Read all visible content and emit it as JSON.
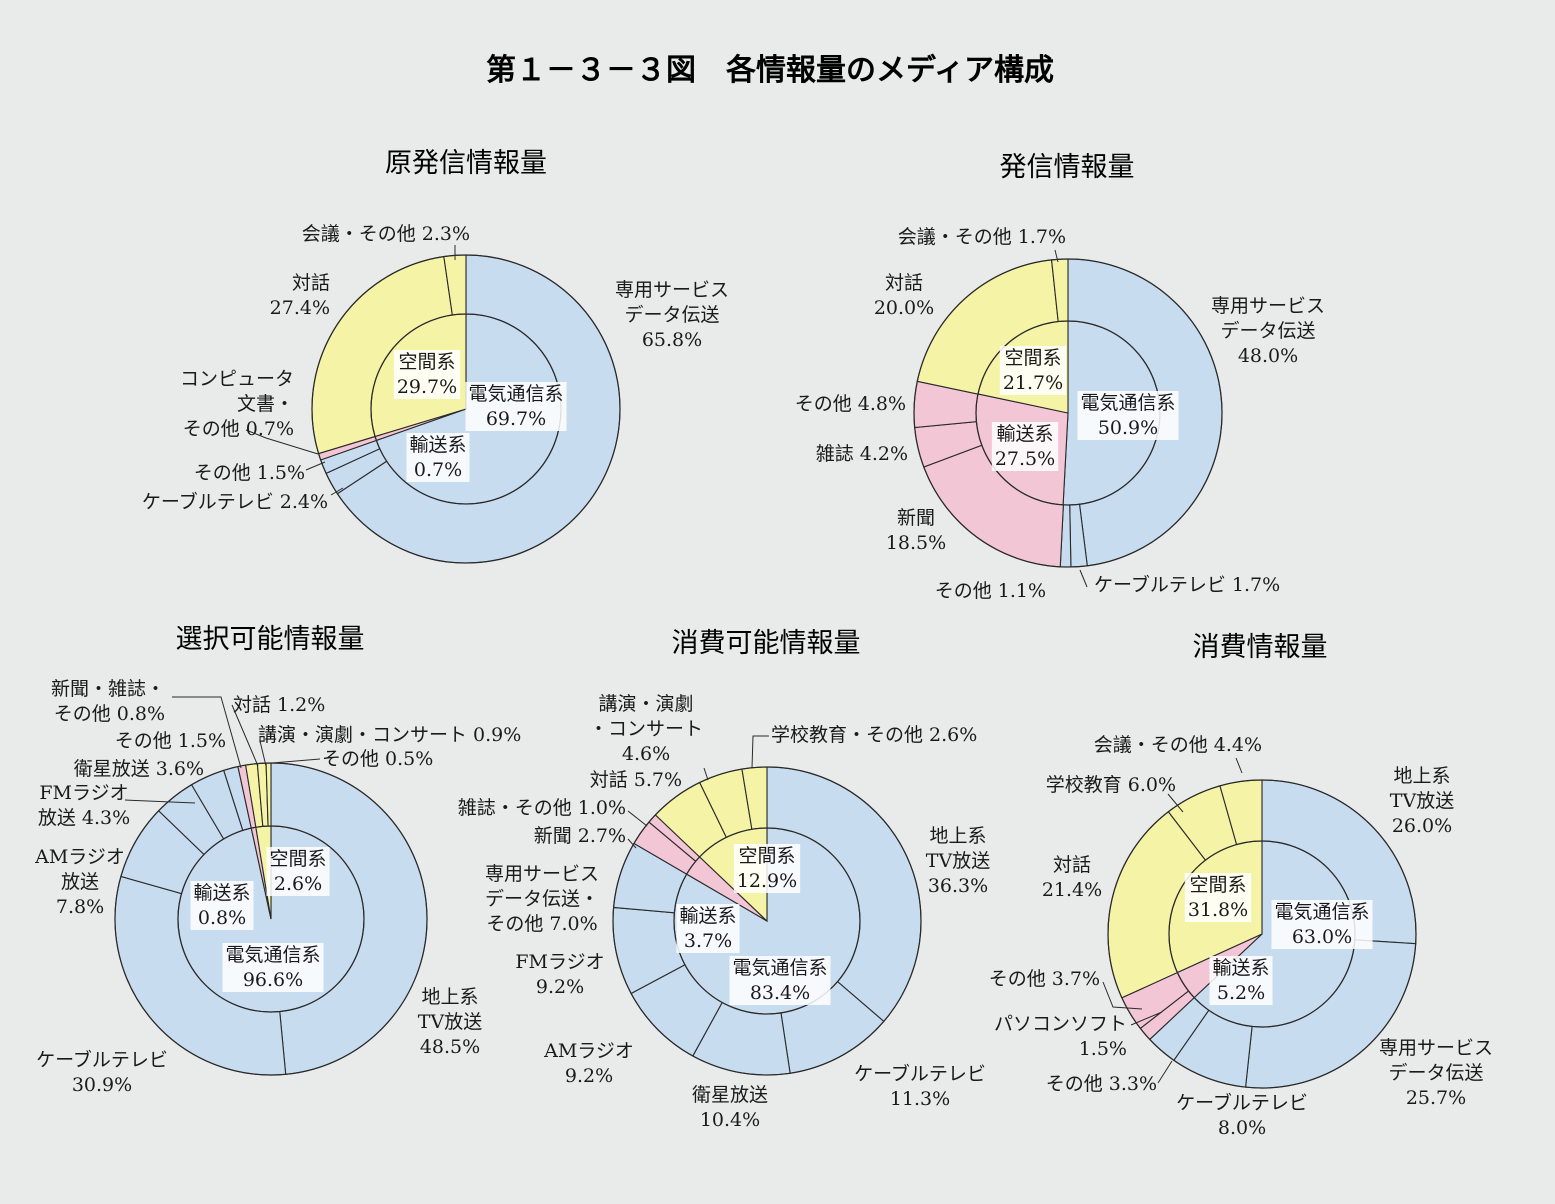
{
  "figure_title": "第１－３－３図　各情報量のメディア構成",
  "colors": {
    "telecom": "#c8dcef",
    "transport": "#f3c6d6",
    "spatial": "#f5f4a6",
    "edge": "#2a2a2a",
    "background": "#e9ebea"
  },
  "chart_data": [
    {
      "type": "pie",
      "title": "原発信情報量",
      "inner": [
        {
          "name": "電気通信系",
          "value": 69.7,
          "group": "telecom"
        },
        {
          "name": "輸送系",
          "value": 0.7,
          "group": "transport"
        },
        {
          "name": "空間系",
          "value": 29.7,
          "group": "spatial"
        }
      ],
      "outer": [
        {
          "name": "専用サービスデータ伝送",
          "value": 65.8,
          "group": "telecom"
        },
        {
          "name": "ケーブルテレビ",
          "value": 2.4,
          "group": "telecom"
        },
        {
          "name": "その他",
          "value": 1.5,
          "group": "telecom"
        },
        {
          "name": "コンピュータ文書・その他",
          "value": 0.7,
          "group": "transport"
        },
        {
          "name": "対話",
          "value": 27.4,
          "group": "spatial"
        },
        {
          "name": "会議・その他",
          "value": 2.3,
          "group": "spatial"
        }
      ]
    },
    {
      "type": "pie",
      "title": "発信情報量",
      "inner": [
        {
          "name": "電気通信系",
          "value": 50.9,
          "group": "telecom"
        },
        {
          "name": "輸送系",
          "value": 27.5,
          "group": "transport"
        },
        {
          "name": "空間系",
          "value": 21.7,
          "group": "spatial"
        }
      ],
      "outer": [
        {
          "name": "専用サービスデータ伝送",
          "value": 48.0,
          "group": "telecom"
        },
        {
          "name": "ケーブルテレビ",
          "value": 1.7,
          "group": "telecom"
        },
        {
          "name": "その他",
          "value": 1.1,
          "group": "telecom"
        },
        {
          "name": "新聞",
          "value": 18.5,
          "group": "transport"
        },
        {
          "name": "雑誌",
          "value": 4.2,
          "group": "transport"
        },
        {
          "name": "その他",
          "value": 4.8,
          "group": "transport"
        },
        {
          "name": "対話",
          "value": 20.0,
          "group": "spatial"
        },
        {
          "name": "会議・その他",
          "value": 1.7,
          "group": "spatial"
        }
      ]
    },
    {
      "type": "pie",
      "title": "選択可能情報量",
      "inner": [
        {
          "name": "電気通信系",
          "value": 96.6,
          "group": "telecom"
        },
        {
          "name": "輸送系",
          "value": 0.8,
          "group": "transport"
        },
        {
          "name": "空間系",
          "value": 2.6,
          "group": "spatial"
        }
      ],
      "outer": [
        {
          "name": "地上系TV放送",
          "value": 48.5,
          "group": "telecom"
        },
        {
          "name": "ケーブルテレビ",
          "value": 30.9,
          "group": "telecom"
        },
        {
          "name": "AMラジオ放送",
          "value": 7.8,
          "group": "telecom"
        },
        {
          "name": "FMラジオ放送",
          "value": 4.3,
          "group": "telecom"
        },
        {
          "name": "衛星放送",
          "value": 3.6,
          "group": "telecom"
        },
        {
          "name": "その他",
          "value": 1.5,
          "group": "telecom"
        },
        {
          "name": "新聞・雑誌・その他",
          "value": 0.8,
          "group": "transport"
        },
        {
          "name": "対話",
          "value": 1.2,
          "group": "spatial"
        },
        {
          "name": "講演・演劇・コンサート",
          "value": 0.9,
          "group": "spatial"
        },
        {
          "name": "その他",
          "value": 0.5,
          "group": "spatial"
        }
      ]
    },
    {
      "type": "pie",
      "title": "消費可能情報量",
      "inner": [
        {
          "name": "電気通信系",
          "value": 83.4,
          "group": "telecom"
        },
        {
          "name": "輸送系",
          "value": 3.7,
          "group": "transport"
        },
        {
          "name": "空間系",
          "value": 12.9,
          "group": "spatial"
        }
      ],
      "outer": [
        {
          "name": "地上系TV放送",
          "value": 36.3,
          "group": "telecom"
        },
        {
          "name": "ケーブルテレビ",
          "value": 11.3,
          "group": "telecom"
        },
        {
          "name": "衛星放送",
          "value": 10.4,
          "group": "telecom"
        },
        {
          "name": "AMラジオ",
          "value": 9.2,
          "group": "telecom"
        },
        {
          "name": "FMラジオ",
          "value": 9.2,
          "group": "telecom"
        },
        {
          "name": "専用サービスデータ伝送・その他",
          "value": 7.0,
          "group": "telecom"
        },
        {
          "name": "新聞",
          "value": 2.7,
          "group": "transport"
        },
        {
          "name": "雑誌・その他",
          "value": 1.0,
          "group": "transport"
        },
        {
          "name": "対話",
          "value": 5.7,
          "group": "spatial"
        },
        {
          "name": "講演・演劇・コンサート",
          "value": 4.6,
          "group": "spatial"
        },
        {
          "name": "学校教育・その他",
          "value": 2.6,
          "group": "spatial"
        }
      ]
    },
    {
      "type": "pie",
      "title": "消費情報量",
      "inner": [
        {
          "name": "電気通信系",
          "value": 63.0,
          "group": "telecom"
        },
        {
          "name": "輸送系",
          "value": 5.2,
          "group": "transport"
        },
        {
          "name": "空間系",
          "value": 31.8,
          "group": "spatial"
        }
      ],
      "outer": [
        {
          "name": "地上系TV放送",
          "value": 26.0,
          "group": "telecom"
        },
        {
          "name": "専用サービスデータ伝送",
          "value": 25.7,
          "group": "telecom"
        },
        {
          "name": "ケーブルテレビ",
          "value": 8.0,
          "group": "telecom"
        },
        {
          "name": "その他",
          "value": 3.3,
          "group": "telecom"
        },
        {
          "name": "パソコンソフト",
          "value": 1.5,
          "group": "transport"
        },
        {
          "name": "その他",
          "value": 3.7,
          "group": "transport"
        },
        {
          "name": "対話",
          "value": 21.4,
          "group": "spatial"
        },
        {
          "name": "学校教育",
          "value": 6.0,
          "group": "spatial"
        },
        {
          "name": "会議・その他",
          "value": 4.4,
          "group": "spatial"
        }
      ]
    }
  ],
  "labels": [
    [
      [
        "専用サービス",
        "データ伝送",
        "65.8%"
      ],
      [
        "ケーブルテレビ 2.4%"
      ],
      [
        "その他 1.5%"
      ],
      [
        "コンピュータ",
        "文書・",
        "その他 0.7%"
      ],
      [
        "対話",
        "27.4%"
      ],
      [
        "会議・その他 2.3%"
      ]
    ],
    [
      [
        "専用サービス",
        "データ伝送",
        "48.0%"
      ],
      [
        "ケーブルテレビ 1.7%"
      ],
      [
        "その他 1.1%"
      ],
      [
        "新聞",
        "18.5%"
      ],
      [
        "雑誌 4.2%"
      ],
      [
        "その他 4.8%"
      ],
      [
        "対話",
        "20.0%"
      ],
      [
        "会議・その他 1.7%"
      ]
    ],
    [
      [
        "地上系",
        "TV放送",
        "48.5%"
      ],
      [
        "ケーブルテレビ",
        "30.9%"
      ],
      [
        "AMラジオ",
        "放送",
        "7.8%"
      ],
      [
        "FMラジオ",
        "放送 4.3%"
      ],
      [
        "衛星放送 3.6%"
      ],
      [
        "その他 1.5%"
      ],
      [
        "新聞・雑誌・",
        "その他 0.8%"
      ],
      [
        "対話 1.2%"
      ],
      [
        "講演・演劇・コンサート 0.9%"
      ],
      [
        "その他 0.5%"
      ]
    ],
    [
      [
        "地上系",
        "TV放送",
        "36.3%"
      ],
      [
        "ケーブルテレビ",
        "11.3%"
      ],
      [
        "衛星放送",
        "10.4%"
      ],
      [
        "AMラジオ",
        "9.2%"
      ],
      [
        "FMラジオ",
        "9.2%"
      ],
      [
        "専用サービス",
        "データ伝送・",
        "その他 7.0%"
      ],
      [
        "新聞 2.7%"
      ],
      [
        "雑誌・その他 1.0%"
      ],
      [
        "対話 5.7%"
      ],
      [
        "講演・演劇",
        "・コンサート",
        "4.6%"
      ],
      [
        "学校教育・その他 2.6%"
      ]
    ],
    [
      [
        "地上系",
        "TV放送",
        "26.0%"
      ],
      [
        "専用サービス",
        "データ伝送",
        "25.7%"
      ],
      [
        "ケーブルテレビ",
        "8.0%"
      ],
      [
        "その他 3.3%"
      ],
      [
        "パソコンソフト",
        "1.5%"
      ],
      [
        "その他 3.7%"
      ],
      [
        "対話",
        "21.4%"
      ],
      [
        "学校教育 6.0%"
      ],
      [
        "会議・その他 4.4%"
      ]
    ]
  ],
  "inner_labels": [
    [
      [
        "電気通信系",
        "69.7%"
      ],
      [
        "輸送系",
        "0.7%"
      ],
      [
        "空間系",
        "29.7%"
      ]
    ],
    [
      [
        "電気通信系",
        "50.9%"
      ],
      [
        "輸送系",
        "27.5%"
      ],
      [
        "空間系",
        "21.7%"
      ]
    ],
    [
      [
        "電気通信系",
        "96.6%"
      ],
      [
        "輸送系",
        "0.8%"
      ],
      [
        "空間系",
        "2.6%"
      ]
    ],
    [
      [
        "電気通信系",
        "83.4%"
      ],
      [
        "輸送系",
        "3.7%"
      ],
      [
        "空間系",
        "12.9%"
      ]
    ],
    [
      [
        "電気通信系",
        "63.0%"
      ],
      [
        "輸送系",
        "5.2%"
      ],
      [
        "空間系",
        "31.8%"
      ]
    ]
  ]
}
